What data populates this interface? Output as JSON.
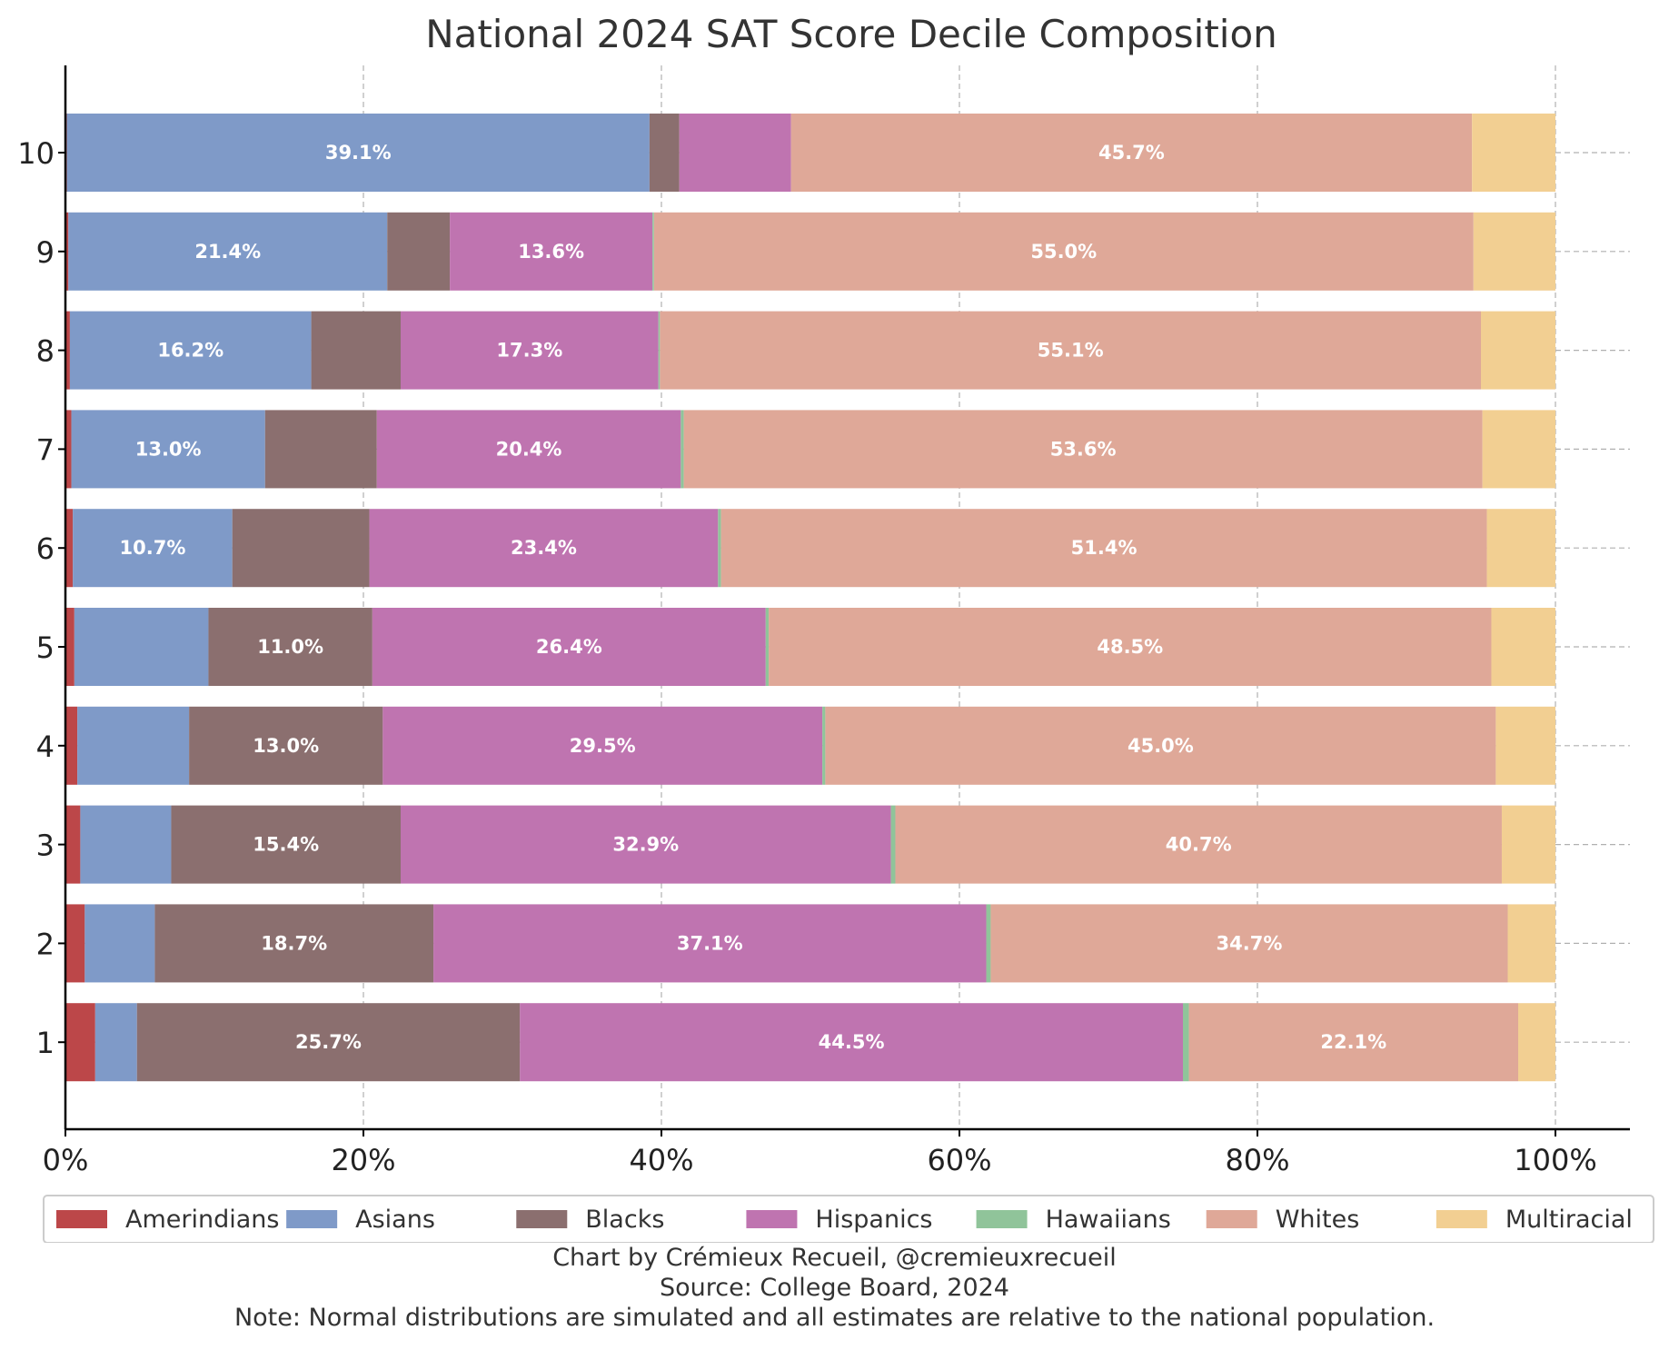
{
  "chart_data": {
    "type": "bar",
    "orientation": "horizontal",
    "stacked": true,
    "title": "National 2024 SAT Score Decile Composition",
    "xlabel": "",
    "ylabel": "",
    "xlim": [
      0,
      105
    ],
    "x_ticks": [
      0,
      20,
      40,
      60,
      80,
      100
    ],
    "x_tick_labels": [
      "0%",
      "20%",
      "40%",
      "60%",
      "80%",
      "100%"
    ],
    "grid": true,
    "legend_position": "bottom",
    "categories": [
      "1",
      "2",
      "3",
      "4",
      "5",
      "6",
      "7",
      "8",
      "9",
      "10"
    ],
    "series": [
      {
        "name": "Amerindians",
        "color": "#bc4749",
        "values": [
          2.0,
          1.3,
          1.0,
          0.8,
          0.6,
          0.5,
          0.4,
          0.3,
          0.2,
          0.1
        ]
      },
      {
        "name": "Asians",
        "color": "#7f9ac8",
        "values": [
          2.8,
          4.7,
          6.1,
          7.5,
          9.0,
          10.7,
          13.0,
          16.2,
          21.4,
          39.1
        ]
      },
      {
        "name": "Blacks",
        "color": "#8b6f6f",
        "values": [
          25.7,
          18.7,
          15.4,
          13.0,
          11.0,
          9.2,
          7.5,
          6.0,
          4.2,
          2.0
        ]
      },
      {
        "name": "Hispanics",
        "color": "#bf74b0",
        "values": [
          44.5,
          37.1,
          32.9,
          29.5,
          26.4,
          23.4,
          20.4,
          17.3,
          13.6,
          7.5
        ]
      },
      {
        "name": "Hawaiians",
        "color": "#90c49a",
        "values": [
          0.4,
          0.3,
          0.3,
          0.2,
          0.2,
          0.2,
          0.2,
          0.1,
          0.1,
          0.0
        ]
      },
      {
        "name": "Whites",
        "color": "#dfa898",
        "values": [
          22.1,
          34.7,
          40.7,
          45.0,
          48.5,
          51.4,
          53.6,
          55.1,
          55.0,
          45.7
        ]
      },
      {
        "name": "Multiracial",
        "color": "#f2cf92",
        "values": [
          2.5,
          3.2,
          3.6,
          4.0,
          4.3,
          4.6,
          4.9,
          5.0,
          5.5,
          5.6
        ]
      }
    ],
    "data_labels": [
      {
        "category": "1",
        "series": "Blacks",
        "text": "25.7%"
      },
      {
        "category": "1",
        "series": "Hispanics",
        "text": "44.5%"
      },
      {
        "category": "1",
        "series": "Whites",
        "text": "22.1%"
      },
      {
        "category": "2",
        "series": "Blacks",
        "text": "18.7%"
      },
      {
        "category": "2",
        "series": "Hispanics",
        "text": "37.1%"
      },
      {
        "category": "2",
        "series": "Whites",
        "text": "34.7%"
      },
      {
        "category": "3",
        "series": "Blacks",
        "text": "15.4%"
      },
      {
        "category": "3",
        "series": "Hispanics",
        "text": "32.9%"
      },
      {
        "category": "3",
        "series": "Whites",
        "text": "40.7%"
      },
      {
        "category": "4",
        "series": "Blacks",
        "text": "13.0%"
      },
      {
        "category": "4",
        "series": "Hispanics",
        "text": "29.5%"
      },
      {
        "category": "4",
        "series": "Whites",
        "text": "45.0%"
      },
      {
        "category": "5",
        "series": "Blacks",
        "text": "11.0%"
      },
      {
        "category": "5",
        "series": "Hispanics",
        "text": "26.4%"
      },
      {
        "category": "5",
        "series": "Whites",
        "text": "48.5%"
      },
      {
        "category": "6",
        "series": "Asians",
        "text": "10.7%"
      },
      {
        "category": "6",
        "series": "Hispanics",
        "text": "23.4%"
      },
      {
        "category": "6",
        "series": "Whites",
        "text": "51.4%"
      },
      {
        "category": "7",
        "series": "Asians",
        "text": "13.0%"
      },
      {
        "category": "7",
        "series": "Hispanics",
        "text": "20.4%"
      },
      {
        "category": "7",
        "series": "Whites",
        "text": "53.6%"
      },
      {
        "category": "8",
        "series": "Asians",
        "text": "16.2%"
      },
      {
        "category": "8",
        "series": "Hispanics",
        "text": "17.3%"
      },
      {
        "category": "8",
        "series": "Whites",
        "text": "55.1%"
      },
      {
        "category": "9",
        "series": "Asians",
        "text": "21.4%"
      },
      {
        "category": "9",
        "series": "Hispanics",
        "text": "13.6%"
      },
      {
        "category": "9",
        "series": "Whites",
        "text": "55.0%"
      },
      {
        "category": "10",
        "series": "Asians",
        "text": "39.1%"
      },
      {
        "category": "10",
        "series": "Whites",
        "text": "45.7%"
      }
    ]
  },
  "footer": {
    "credit": "Chart by Crémieux Recueil, @cremieuxrecueil",
    "source": "Source: College Board, 2024",
    "note": "Note: Normal distributions are simulated and all estimates are relative to the national population."
  }
}
